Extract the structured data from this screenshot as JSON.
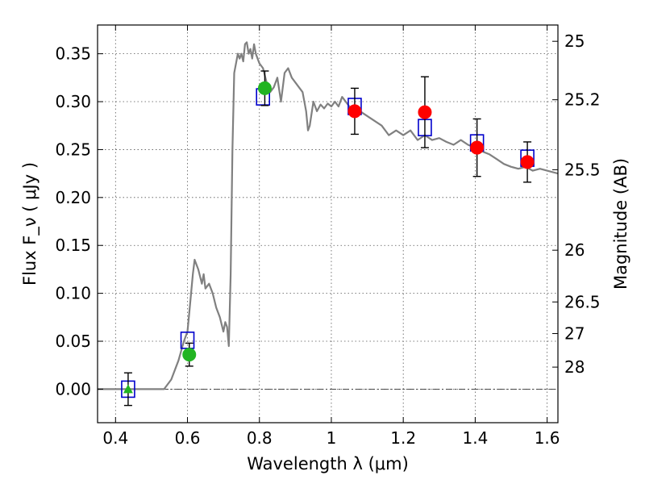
{
  "chart_data": {
    "type": "scatter",
    "title": "",
    "xlabel": "Wavelength  λ (μm)",
    "ylabel": "Flux  F_ν  ( μJy )",
    "y2label": "Magnitude (AB)",
    "xlim": [
      0.35,
      1.63
    ],
    "ylim": [
      -0.035,
      0.38
    ],
    "grid": true,
    "x_ticks": [
      0.4,
      0.6,
      0.8,
      1.0,
      1.2,
      1.4,
      1.6
    ],
    "x_tick_labels": [
      "0.4",
      "0.6",
      "0.8",
      "1",
      "1.2",
      "1.4",
      "1.6"
    ],
    "y_ticks": [
      0.0,
      0.05,
      0.1,
      0.15,
      0.2,
      0.25,
      0.3,
      0.35
    ],
    "y_tick_labels": [
      "0.00",
      "0.05",
      "0.10",
      "0.15",
      "0.20",
      "0.25",
      "0.30",
      "0.35"
    ],
    "mag_ticks": [
      {
        "label": "25",
        "flux": 0.363
      },
      {
        "label": "25.2",
        "flux": 0.302
      },
      {
        "label": "25.5",
        "flux": 0.229
      },
      {
        "label": "26",
        "flux": 0.145
      },
      {
        "label": "26.5",
        "flux": 0.091
      },
      {
        "label": "27",
        "flux": 0.058
      },
      {
        "label": "28",
        "flux": 0.023
      }
    ],
    "zero_line": 0.0,
    "series": [
      {
        "style": "line",
        "color": "#808080",
        "x": [
          0.35,
          0.4,
          0.45,
          0.5,
          0.535,
          0.555,
          0.575,
          0.59,
          0.6,
          0.605,
          0.61,
          0.615,
          0.62,
          0.63,
          0.64,
          0.645,
          0.65,
          0.66,
          0.67,
          0.68,
          0.69,
          0.7,
          0.705,
          0.71,
          0.715,
          0.72,
          0.725,
          0.73,
          0.74,
          0.745,
          0.75,
          0.755,
          0.76,
          0.765,
          0.77,
          0.775,
          0.78,
          0.785,
          0.79,
          0.795,
          0.8,
          0.81,
          0.82,
          0.83,
          0.84,
          0.85,
          0.86,
          0.87,
          0.88,
          0.89,
          0.9,
          0.91,
          0.92,
          0.93,
          0.935,
          0.94,
          0.95,
          0.96,
          0.97,
          0.98,
          0.99,
          1.0,
          1.01,
          1.02,
          1.03,
          1.04,
          1.05,
          1.06,
          1.08,
          1.1,
          1.12,
          1.14,
          1.16,
          1.18,
          1.2,
          1.22,
          1.24,
          1.26,
          1.28,
          1.3,
          1.32,
          1.34,
          1.36,
          1.38,
          1.4,
          1.42,
          1.44,
          1.46,
          1.48,
          1.5,
          1.52,
          1.54,
          1.56,
          1.58,
          1.6,
          1.63
        ],
        "y": [
          0.0,
          0.0,
          0.0,
          0.0,
          0.0,
          0.01,
          0.03,
          0.05,
          0.06,
          0.08,
          0.1,
          0.12,
          0.135,
          0.125,
          0.11,
          0.12,
          0.105,
          0.11,
          0.1,
          0.085,
          0.075,
          0.06,
          0.07,
          0.065,
          0.045,
          0.12,
          0.25,
          0.33,
          0.35,
          0.345,
          0.35,
          0.342,
          0.36,
          0.362,
          0.35,
          0.355,
          0.345,
          0.36,
          0.35,
          0.345,
          0.34,
          0.335,
          0.32,
          0.31,
          0.315,
          0.325,
          0.3,
          0.33,
          0.335,
          0.325,
          0.32,
          0.315,
          0.31,
          0.29,
          0.27,
          0.275,
          0.3,
          0.29,
          0.297,
          0.293,
          0.298,
          0.295,
          0.3,
          0.295,
          0.305,
          0.3,
          0.295,
          0.292,
          0.29,
          0.285,
          0.28,
          0.275,
          0.265,
          0.27,
          0.265,
          0.27,
          0.26,
          0.265,
          0.26,
          0.262,
          0.258,
          0.255,
          0.26,
          0.255,
          0.252,
          0.248,
          0.245,
          0.24,
          0.235,
          0.232,
          0.23,
          0.232,
          0.228,
          0.23,
          0.228,
          0.225
        ]
      },
      {
        "style": "open-square",
        "color": "#0000cc",
        "x": [
          0.435,
          0.6,
          0.81,
          1.065,
          1.26,
          1.405,
          1.545
        ],
        "y": [
          0.0,
          0.051,
          0.305,
          0.295,
          0.273,
          0.257,
          0.241
        ]
      },
      {
        "style": "filled-circle",
        "color": "#22b422",
        "x": [
          0.605,
          0.815
        ],
        "y": [
          0.036,
          0.314
        ],
        "yerr": [
          0.012,
          0.018
        ]
      },
      {
        "style": "filled-triangle",
        "color": "#22b422",
        "x": [
          0.435
        ],
        "y": [
          0.0
        ],
        "yerr": [
          0.017
        ]
      },
      {
        "style": "filled-circle",
        "color": "#ff0000",
        "x": [
          1.065,
          1.26,
          1.405,
          1.545
        ],
        "y": [
          0.29,
          0.289,
          0.252,
          0.237
        ],
        "yerr": [
          0.024,
          0.037,
          0.03,
          0.021
        ]
      }
    ]
  }
}
